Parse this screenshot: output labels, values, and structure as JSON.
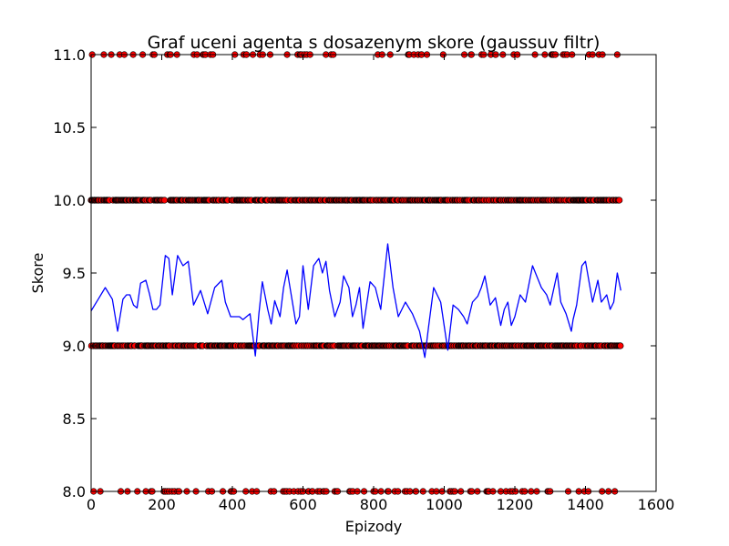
{
  "chart_data": {
    "type": "scatter",
    "title": "Graf uceni agenta s dosazenym skore (gaussuv filtr)",
    "xlabel": "Epizody",
    "ylabel": "Skore",
    "xlim": [
      0,
      1600
    ],
    "ylim": [
      8.0,
      11.0
    ],
    "xticks": [
      "0",
      "200",
      "400",
      "600",
      "800",
      "1000",
      "1200",
      "1400",
      "1600"
    ],
    "yticks": [
      "8.0",
      "8.5",
      "9.0",
      "9.5",
      "10.0",
      "10.5",
      "11.0"
    ],
    "grid": false,
    "episodes": 1500,
    "series": [
      {
        "kind": "points",
        "color": "#ff0000",
        "edge_color": "#000000",
        "levels": [
          8,
          9,
          10,
          11
        ],
        "description": "raw per-episode scores at discrete levels 8, 9, 10, 11"
      },
      {
        "kind": "line",
        "color": "#0000ff",
        "x": [
          0,
          20,
          40,
          60,
          75,
          90,
          100,
          110,
          120,
          130,
          140,
          155,
          165,
          175,
          185,
          195,
          210,
          220,
          230,
          245,
          260,
          275,
          290,
          310,
          330,
          350,
          370,
          380,
          395,
          410,
          420,
          430,
          450,
          465,
          475,
          485,
          500,
          510,
          520,
          535,
          545,
          555,
          570,
          580,
          590,
          600,
          615,
          630,
          645,
          655,
          665,
          675,
          690,
          705,
          715,
          730,
          740,
          750,
          760,
          770,
          790,
          805,
          820,
          840,
          855,
          870,
          890,
          910,
          930,
          945,
          955,
          970,
          990,
          1010,
          1025,
          1040,
          1055,
          1065,
          1080,
          1095,
          1105,
          1115,
          1130,
          1145,
          1160,
          1170,
          1180,
          1190,
          1200,
          1215,
          1230,
          1250,
          1275,
          1290,
          1300,
          1320,
          1330,
          1345,
          1360,
          1365,
          1375,
          1390,
          1400,
          1420,
          1435,
          1445,
          1460,
          1470,
          1480,
          1490,
          1500
        ],
        "y": [
          9.24,
          9.32,
          9.4,
          9.32,
          9.1,
          9.32,
          9.35,
          9.35,
          9.28,
          9.26,
          9.43,
          9.45,
          9.36,
          9.25,
          9.25,
          9.28,
          9.62,
          9.6,
          9.35,
          9.62,
          9.55,
          9.58,
          9.28,
          9.38,
          9.22,
          9.4,
          9.45,
          9.3,
          9.2,
          9.2,
          9.2,
          9.18,
          9.22,
          8.93,
          9.22,
          9.44,
          9.25,
          9.15,
          9.31,
          9.2,
          9.4,
          9.52,
          9.3,
          9.15,
          9.2,
          9.55,
          9.25,
          9.55,
          9.6,
          9.5,
          9.58,
          9.38,
          9.2,
          9.3,
          9.48,
          9.4,
          9.2,
          9.28,
          9.4,
          9.12,
          9.44,
          9.4,
          9.25,
          9.7,
          9.4,
          9.2,
          9.3,
          9.22,
          9.1,
          8.92,
          9.12,
          9.4,
          9.3,
          8.97,
          9.28,
          9.25,
          9.2,
          9.15,
          9.3,
          9.34,
          9.4,
          9.48,
          9.28,
          9.33,
          9.14,
          9.25,
          9.3,
          9.14,
          9.2,
          9.35,
          9.3,
          9.55,
          9.4,
          9.35,
          9.28,
          9.5,
          9.3,
          9.22,
          9.1,
          9.18,
          9.28,
          9.55,
          9.58,
          9.3,
          9.45,
          9.3,
          9.35,
          9.25,
          9.3,
          9.5,
          9.38
        ]
      }
    ]
  }
}
